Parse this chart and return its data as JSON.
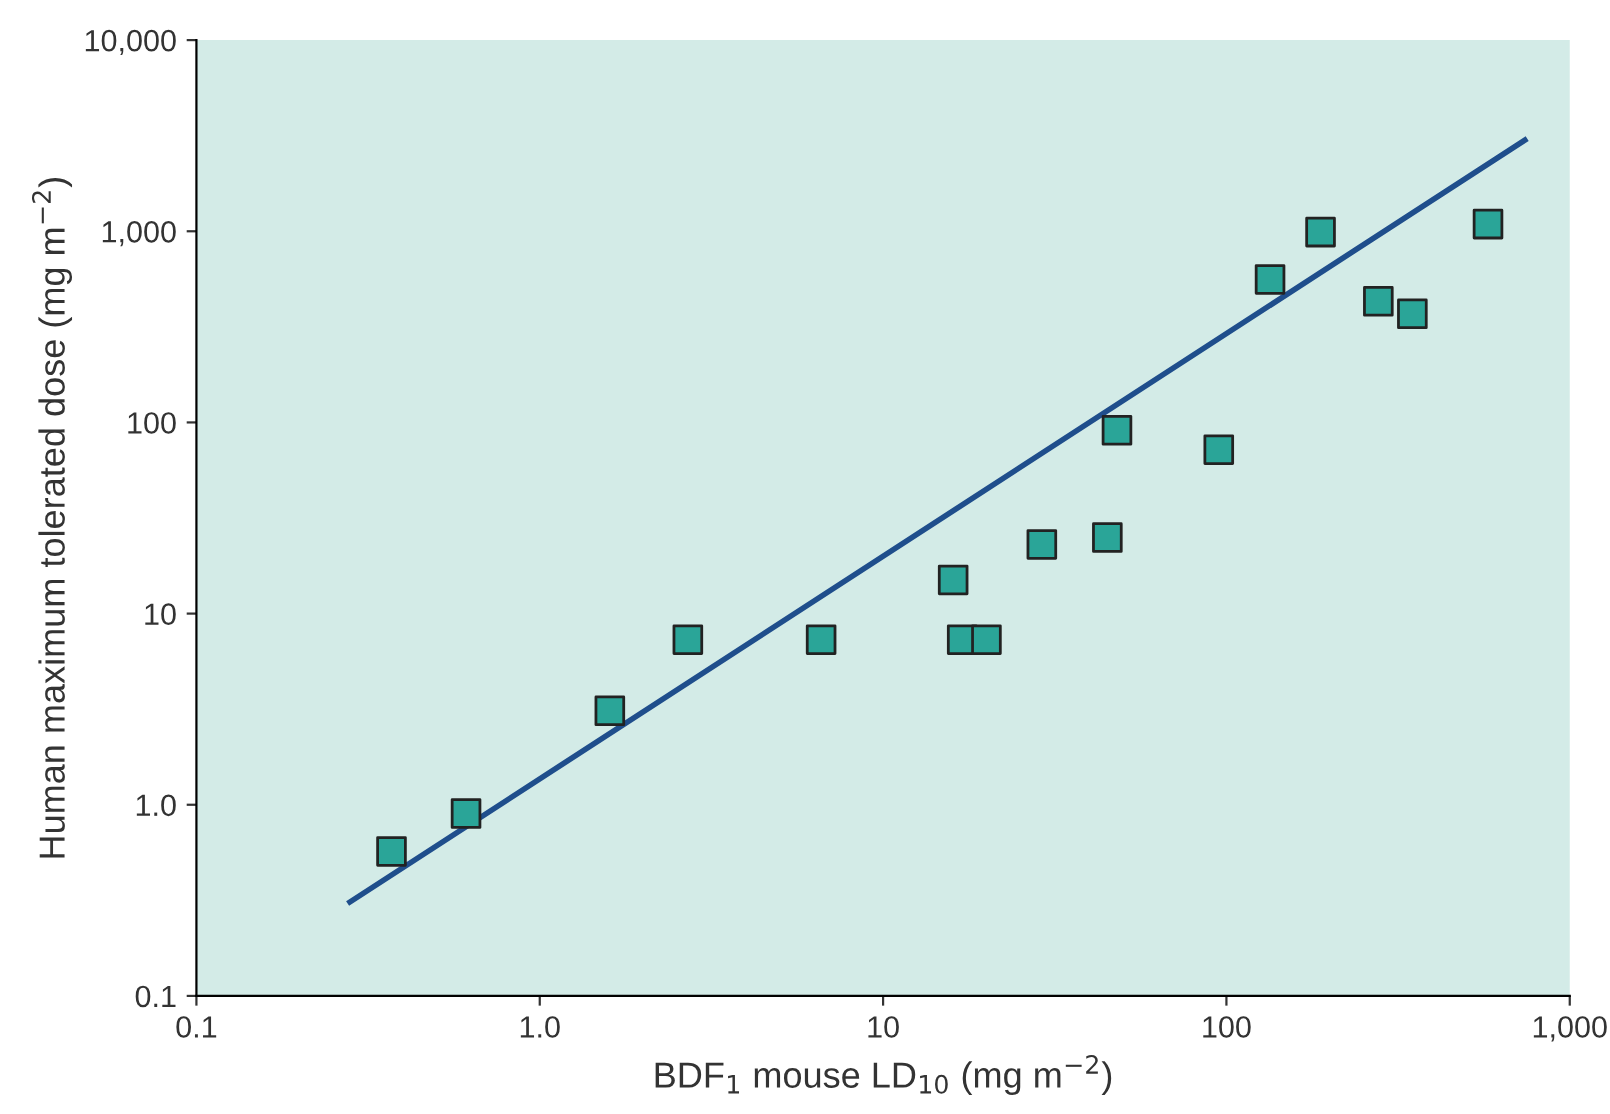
{
  "chart_data": {
    "type": "scatter",
    "xlabel": "BDF$_{1}$ mouse LD$_{10}$ (mg m$^{−2}$)",
    "ylabel": "Human maximum tolerated dose (mg m$^{−2}$)",
    "log": "xy",
    "xlim": [
      0.1,
      1000
    ],
    "ylim": [
      0.1,
      10000
    ],
    "xticks": [
      {
        "value": 0.1,
        "label": "0.1"
      },
      {
        "value": 1,
        "label": "1.0"
      },
      {
        "value": 10,
        "label": "10"
      },
      {
        "value": 100,
        "label": "100"
      },
      {
        "value": 1000,
        "label": "1,000"
      }
    ],
    "yticks": [
      {
        "value": 0.1,
        "label": "0.1"
      },
      {
        "value": 1,
        "label": "1.0"
      },
      {
        "value": 10,
        "label": "10"
      },
      {
        "value": 100,
        "label": "100"
      },
      {
        "value": 1000,
        "label": "1,000"
      },
      {
        "value": 10000,
        "label": "10,000"
      }
    ],
    "grid": false,
    "legend": false,
    "marker": "square",
    "series": [
      {
        "color": "#2aa598",
        "x": [
          0.37,
          0.61,
          1.6,
          2.7,
          6.6,
          16,
          17,
          20,
          29,
          45,
          48,
          95,
          134,
          188,
          277,
          348,
          578
        ],
        "values": [
          0.57,
          0.9,
          3.1,
          7.3,
          7.3,
          15,
          7.3,
          7.3,
          23,
          25,
          91,
          72,
          560,
          990,
          430,
          370,
          1090
        ]
      },
      {
        "type": "line",
        "color": "#1f4e8c",
        "marker": "none",
        "line_style": "solid",
        "x": [
          0.28,
          740
        ],
        "values": [
          0.31,
          3000
        ]
      }
    ]
  }
}
